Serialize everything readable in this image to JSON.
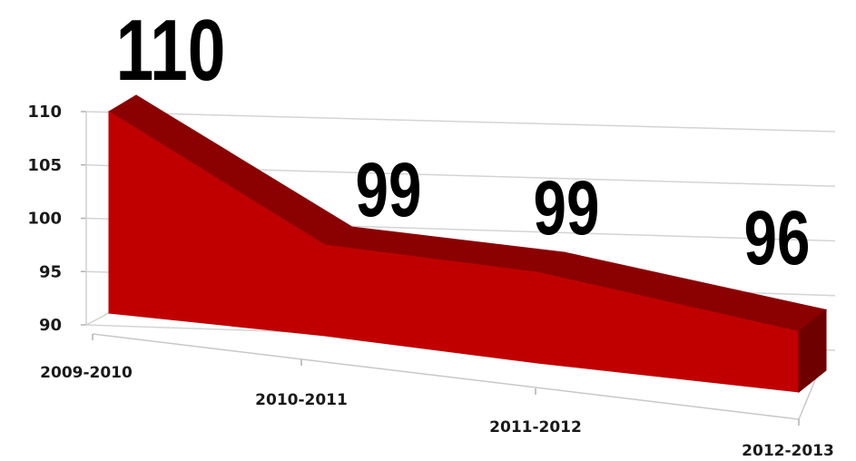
{
  "chart_data": {
    "type": "area",
    "three_d": true,
    "categories": [
      "2009-2010",
      "2010-2011",
      "2011-2012",
      "2012-2013"
    ],
    "values": [
      110,
      99,
      99,
      96
    ],
    "data_labels": [
      "110",
      "99",
      "99",
      "96"
    ],
    "ylim": [
      90,
      110
    ],
    "yticks": [
      "90",
      "95",
      "100",
      "105",
      "110"
    ],
    "grid": true,
    "legend": "none",
    "colors": {
      "front": "#c00000",
      "top": "#8b0000",
      "edge": "#6e0000"
    }
  }
}
